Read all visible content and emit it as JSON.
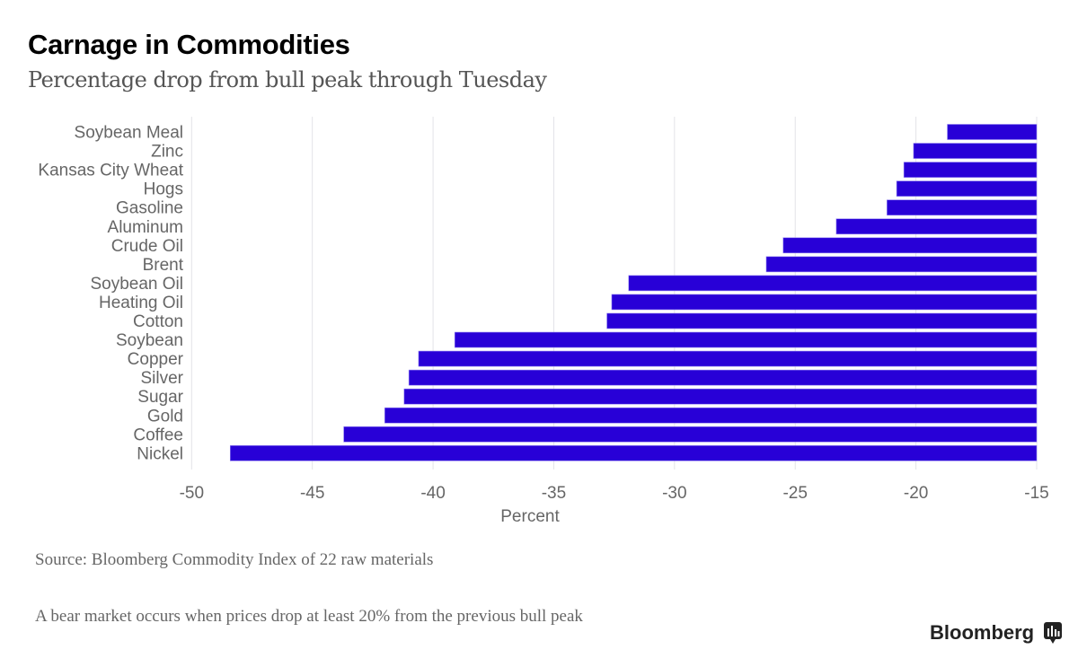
{
  "title": "Carnage in Commodities",
  "subtitle": "Percentage drop from bull peak through Tuesday",
  "source": "Source: Bloomberg Commodity Index of 22 raw materials",
  "note": "A bear market occurs when prices drop at least 20% from the previous bull peak",
  "logo": "Bloomberg",
  "chart_data": {
    "type": "bar",
    "orientation": "horizontal",
    "categories": [
      "Soybean Meal",
      "Zinc",
      "Kansas City Wheat",
      "Hogs",
      "Gasoline",
      "Aluminum",
      "Crude Oil",
      "Brent",
      "Soybean Oil",
      "Heating Oil",
      "Cotton",
      "Soybean",
      "Copper",
      "Silver",
      "Sugar",
      "Gold",
      "Coffee",
      "Nickel"
    ],
    "values": [
      -18.7,
      -20.1,
      -20.5,
      -20.8,
      -21.2,
      -23.3,
      -25.5,
      -26.2,
      -31.9,
      -32.6,
      -32.8,
      -39.1,
      -40.6,
      -41.0,
      -41.2,
      -42.0,
      -43.7,
      -48.4
    ],
    "xlabel": "Percent",
    "xlim": [
      -50,
      -15
    ],
    "xticks": [
      -50,
      -45,
      -40,
      -35,
      -30,
      -25,
      -20,
      -15
    ],
    "bar_color": "#2800d7",
    "grid": "vertical"
  }
}
